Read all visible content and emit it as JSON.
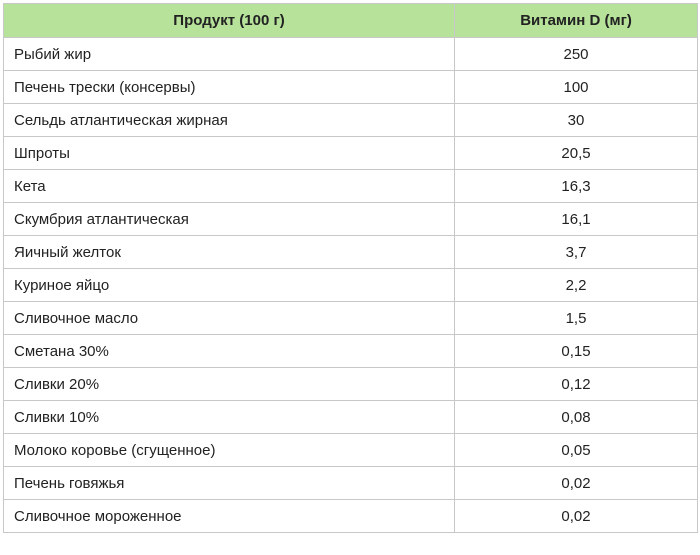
{
  "table": {
    "headers": {
      "product": "Продукт (100 г)",
      "vitamin": "Витамин D (мг)"
    },
    "rows": [
      {
        "product": "Рыбий жир",
        "value": "250"
      },
      {
        "product": "Печень трески (консервы)",
        "value": "100"
      },
      {
        "product": "Сельдь атлантическая жирная",
        "value": "30"
      },
      {
        "product": "Шпроты",
        "value": "20,5"
      },
      {
        "product": "Кета",
        "value": "16,3"
      },
      {
        "product": "Скумбрия атлантическая",
        "value": "16,1"
      },
      {
        "product": "Яичный желток",
        "value": "3,7"
      },
      {
        "product": "Куриное яйцо",
        "value": "2,2"
      },
      {
        "product": "Сливочное масло",
        "value": "1,5"
      },
      {
        "product": "Сметана 30%",
        "value": "0,15"
      },
      {
        "product": "Сливки 20%",
        "value": "0,12"
      },
      {
        "product": "Сливки 10%",
        "value": "0,08"
      },
      {
        "product": "Молоко коровье (сгущенное)",
        "value": "0,05"
      },
      {
        "product": "Печень говяжья",
        "value": "0,02"
      },
      {
        "product": "Сливочное мороженное",
        "value": "0,02"
      }
    ],
    "colors": {
      "header_bg": "#b6e29a",
      "border": "#c8c8c8"
    }
  }
}
